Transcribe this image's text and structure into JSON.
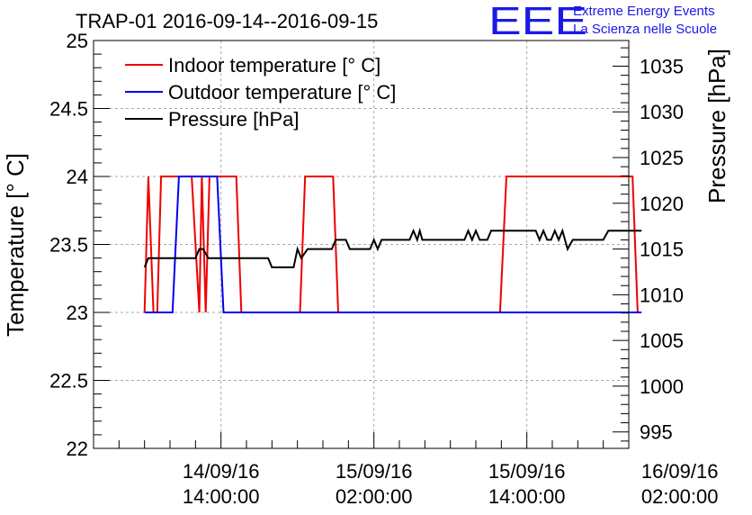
{
  "header": {
    "logo_text": "EEE",
    "project_line_1": "Extreme Energy Events",
    "project_line_2": "La Scienza nelle Scuole"
  },
  "colors": {
    "indoor": "#ee0000",
    "outdoor": "#0000ee",
    "pressure": "#000000",
    "brand": "#1a1ae6",
    "grid": "#aaaaaa"
  },
  "chart_data": {
    "type": "line",
    "title": "TRAP-01 2016-09-14--2016-09-15",
    "ylabel": "Temperature [° C]",
    "y2label": "Pressure [hPa]",
    "ylim": [
      22,
      25
    ],
    "y2lim": [
      993.2,
      1037.8
    ],
    "xlim_hours": [
      0,
      42
    ],
    "yticks": [
      "22",
      "22.5",
      "23",
      "23.5",
      "24",
      "24.5",
      "25"
    ],
    "y2ticks": [
      "995",
      "1000",
      "1005",
      "1010",
      "1015",
      "1020",
      "1025",
      "1030",
      "1035"
    ],
    "xticks": [
      {
        "hour": 10,
        "date": "14/09/16",
        "time": "14:00:00"
      },
      {
        "hour": 22,
        "date": "15/09/16",
        "time": "02:00:00"
      },
      {
        "hour": 34,
        "date": "15/09/16",
        "time": "14:00:00"
      },
      {
        "hour": 46,
        "date": "16/09/16",
        "time": "02:00:00"
      }
    ],
    "legend": {
      "position": "top-left",
      "entries": [
        "Indoor temperature [° C]",
        "Outdoor temperature [° C]",
        "Pressure [hPa]"
      ]
    },
    "series": [
      {
        "name": "Indoor temperature [° C]",
        "axis": "left",
        "color_key": "indoor",
        "x": [
          4,
          4.3,
          4.7,
          5,
          5.3,
          7.7,
          8.3,
          8.5,
          8.8,
          9.1,
          9.2,
          11.2,
          11.6,
          16.2,
          16.6,
          18.8,
          19.2,
          31.9,
          32.4,
          42.3,
          42.7
        ],
        "y": [
          23,
          24,
          23,
          23,
          24,
          24,
          23,
          24,
          23,
          24,
          24,
          24,
          23,
          23,
          24,
          24,
          23,
          23,
          24,
          24,
          23
        ]
      },
      {
        "name": "Outdoor temperature [° C]",
        "axis": "left",
        "color_key": "outdoor",
        "x": [
          4,
          6.2,
          6.7,
          9.7,
          10.2,
          43
        ],
        "y": [
          23,
          23,
          24,
          24,
          23,
          23
        ]
      },
      {
        "name": "Pressure [hPa]",
        "axis": "right",
        "color_key": "pressure",
        "x": [
          4,
          4.3,
          8.0,
          8.3,
          8.6,
          9.0,
          13.7,
          14.0,
          15.7,
          16.0,
          16.3,
          16.8,
          18.7,
          19.0,
          19.8,
          20.1,
          21.7,
          22.0,
          22.3,
          22.6,
          23.0,
          23.3,
          24.8,
          25.1,
          25.4,
          25.6,
          25.8,
          26.2,
          29.1,
          29.4,
          29.7,
          30.0,
          30.3,
          30.6,
          30.9,
          31.2,
          34.7,
          35.0,
          35.3,
          35.6,
          35.9,
          36.2,
          36.5,
          36.8,
          37.2,
          37.6,
          40.0,
          40.4,
          43.0
        ],
        "y": [
          1013,
          1014,
          1014,
          1015,
          1015,
          1014,
          1014,
          1013,
          1013,
          1015,
          1014,
          1015,
          1015,
          1016,
          1016,
          1015,
          1015,
          1016,
          1015,
          1016,
          1016,
          1016,
          1016,
          1017,
          1016,
          1017,
          1016,
          1016,
          1016,
          1017,
          1016,
          1017,
          1016,
          1016,
          1016,
          1017,
          1017,
          1016,
          1017,
          1016,
          1016,
          1017,
          1016,
          1017,
          1015,
          1016,
          1016,
          1017,
          1017
        ]
      }
    ]
  }
}
